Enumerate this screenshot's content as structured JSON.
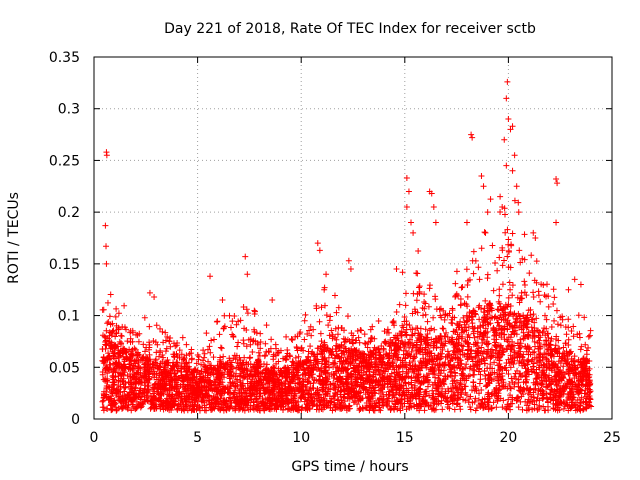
{
  "chart_data": {
    "type": "scatter",
    "title": "Day 221 of 2018, Rate Of TEC Index for receiver sctb",
    "xlabel": "GPS time / hours",
    "ylabel": "ROTI / TECUs",
    "xlim": [
      0,
      25
    ],
    "ylim": [
      0,
      0.35
    ],
    "xticks": [
      0,
      5,
      10,
      15,
      20,
      25
    ],
    "xtick_labels": [
      "0",
      "5",
      "10",
      "15",
      "20",
      "25"
    ],
    "yticks": [
      0,
      0.05,
      0.1,
      0.15,
      0.2,
      0.25,
      0.3,
      0.35
    ],
    "ytick_labels": [
      "0",
      "0.05",
      "0.1",
      "0.15",
      "0.2",
      "0.25",
      "0.3",
      "0.35"
    ],
    "grid": true,
    "marker": "+",
    "color": "#ff0000",
    "time_coverage_hours": [
      0.4,
      24.0
    ],
    "envelope": [
      {
        "t": 0.5,
        "typical": 0.045,
        "upper": 0.13
      },
      {
        "t": 1.0,
        "typical": 0.04,
        "upper": 0.12
      },
      {
        "t": 2.0,
        "typical": 0.035,
        "upper": 0.1
      },
      {
        "t": 3.0,
        "typical": 0.03,
        "upper": 0.11
      },
      {
        "t": 4.0,
        "typical": 0.03,
        "upper": 0.085
      },
      {
        "t": 5.0,
        "typical": 0.025,
        "upper": 0.075
      },
      {
        "t": 6.0,
        "typical": 0.028,
        "upper": 0.1
      },
      {
        "t": 7.0,
        "typical": 0.03,
        "upper": 0.12
      },
      {
        "t": 8.0,
        "typical": 0.03,
        "upper": 0.1
      },
      {
        "t": 9.0,
        "typical": 0.025,
        "upper": 0.075
      },
      {
        "t": 10.0,
        "typical": 0.03,
        "upper": 0.1
      },
      {
        "t": 11.0,
        "typical": 0.04,
        "upper": 0.14
      },
      {
        "t": 12.0,
        "typical": 0.04,
        "upper": 0.11
      },
      {
        "t": 13.0,
        "typical": 0.035,
        "upper": 0.09
      },
      {
        "t": 14.0,
        "typical": 0.04,
        "upper": 0.1
      },
      {
        "t": 15.0,
        "typical": 0.05,
        "upper": 0.15
      },
      {
        "t": 16.0,
        "typical": 0.05,
        "upper": 0.17
      },
      {
        "t": 17.0,
        "typical": 0.045,
        "upper": 0.12
      },
      {
        "t": 18.0,
        "typical": 0.06,
        "upper": 0.18
      },
      {
        "t": 19.0,
        "typical": 0.065,
        "upper": 0.21
      },
      {
        "t": 20.0,
        "typical": 0.065,
        "upper": 0.24
      },
      {
        "t": 21.0,
        "typical": 0.055,
        "upper": 0.18
      },
      {
        "t": 22.0,
        "typical": 0.045,
        "upper": 0.14
      },
      {
        "t": 23.0,
        "typical": 0.035,
        "upper": 0.11
      },
      {
        "t": 24.0,
        "typical": 0.03,
        "upper": 0.1
      }
    ],
    "outliers": [
      {
        "t": 0.6,
        "y": 0.258
      },
      {
        "t": 0.62,
        "y": 0.255
      },
      {
        "t": 0.55,
        "y": 0.187
      },
      {
        "t": 0.58,
        "y": 0.167
      },
      {
        "t": 0.6,
        "y": 0.15
      },
      {
        "t": 2.7,
        "y": 0.122
      },
      {
        "t": 2.9,
        "y": 0.118
      },
      {
        "t": 5.6,
        "y": 0.138
      },
      {
        "t": 6.2,
        "y": 0.115
      },
      {
        "t": 7.3,
        "y": 0.157
      },
      {
        "t": 7.4,
        "y": 0.14
      },
      {
        "t": 8.6,
        "y": 0.115
      },
      {
        "t": 10.8,
        "y": 0.17
      },
      {
        "t": 10.9,
        "y": 0.163
      },
      {
        "t": 11.2,
        "y": 0.14
      },
      {
        "t": 12.3,
        "y": 0.153
      },
      {
        "t": 12.4,
        "y": 0.145
      },
      {
        "t": 14.6,
        "y": 0.145
      },
      {
        "t": 15.1,
        "y": 0.233
      },
      {
        "t": 15.2,
        "y": 0.22
      },
      {
        "t": 15.1,
        "y": 0.205
      },
      {
        "t": 15.3,
        "y": 0.19
      },
      {
        "t": 15.4,
        "y": 0.18
      },
      {
        "t": 16.2,
        "y": 0.22
      },
      {
        "t": 16.3,
        "y": 0.218
      },
      {
        "t": 16.4,
        "y": 0.205
      },
      {
        "t": 16.5,
        "y": 0.19
      },
      {
        "t": 18.2,
        "y": 0.275
      },
      {
        "t": 18.25,
        "y": 0.272
      },
      {
        "t": 18.0,
        "y": 0.19
      },
      {
        "t": 18.7,
        "y": 0.235
      },
      {
        "t": 18.8,
        "y": 0.225
      },
      {
        "t": 19.0,
        "y": 0.2
      },
      {
        "t": 19.6,
        "y": 0.215
      },
      {
        "t": 19.7,
        "y": 0.205
      },
      {
        "t": 19.8,
        "y": 0.27
      },
      {
        "t": 19.9,
        "y": 0.245
      },
      {
        "t": 19.95,
        "y": 0.326
      },
      {
        "t": 19.9,
        "y": 0.31
      },
      {
        "t": 20.0,
        "y": 0.29
      },
      {
        "t": 20.1,
        "y": 0.28
      },
      {
        "t": 20.2,
        "y": 0.283
      },
      {
        "t": 20.3,
        "y": 0.255
      },
      {
        "t": 20.2,
        "y": 0.24
      },
      {
        "t": 20.4,
        "y": 0.225
      },
      {
        "t": 20.5,
        "y": 0.2
      },
      {
        "t": 21.2,
        "y": 0.18
      },
      {
        "t": 21.3,
        "y": 0.175
      },
      {
        "t": 22.3,
        "y": 0.232
      },
      {
        "t": 22.35,
        "y": 0.228
      },
      {
        "t": 22.3,
        "y": 0.19
      },
      {
        "t": 23.5,
        "y": 0.13
      },
      {
        "t": 23.2,
        "y": 0.135
      },
      {
        "t": 22.9,
        "y": 0.125
      }
    ]
  }
}
